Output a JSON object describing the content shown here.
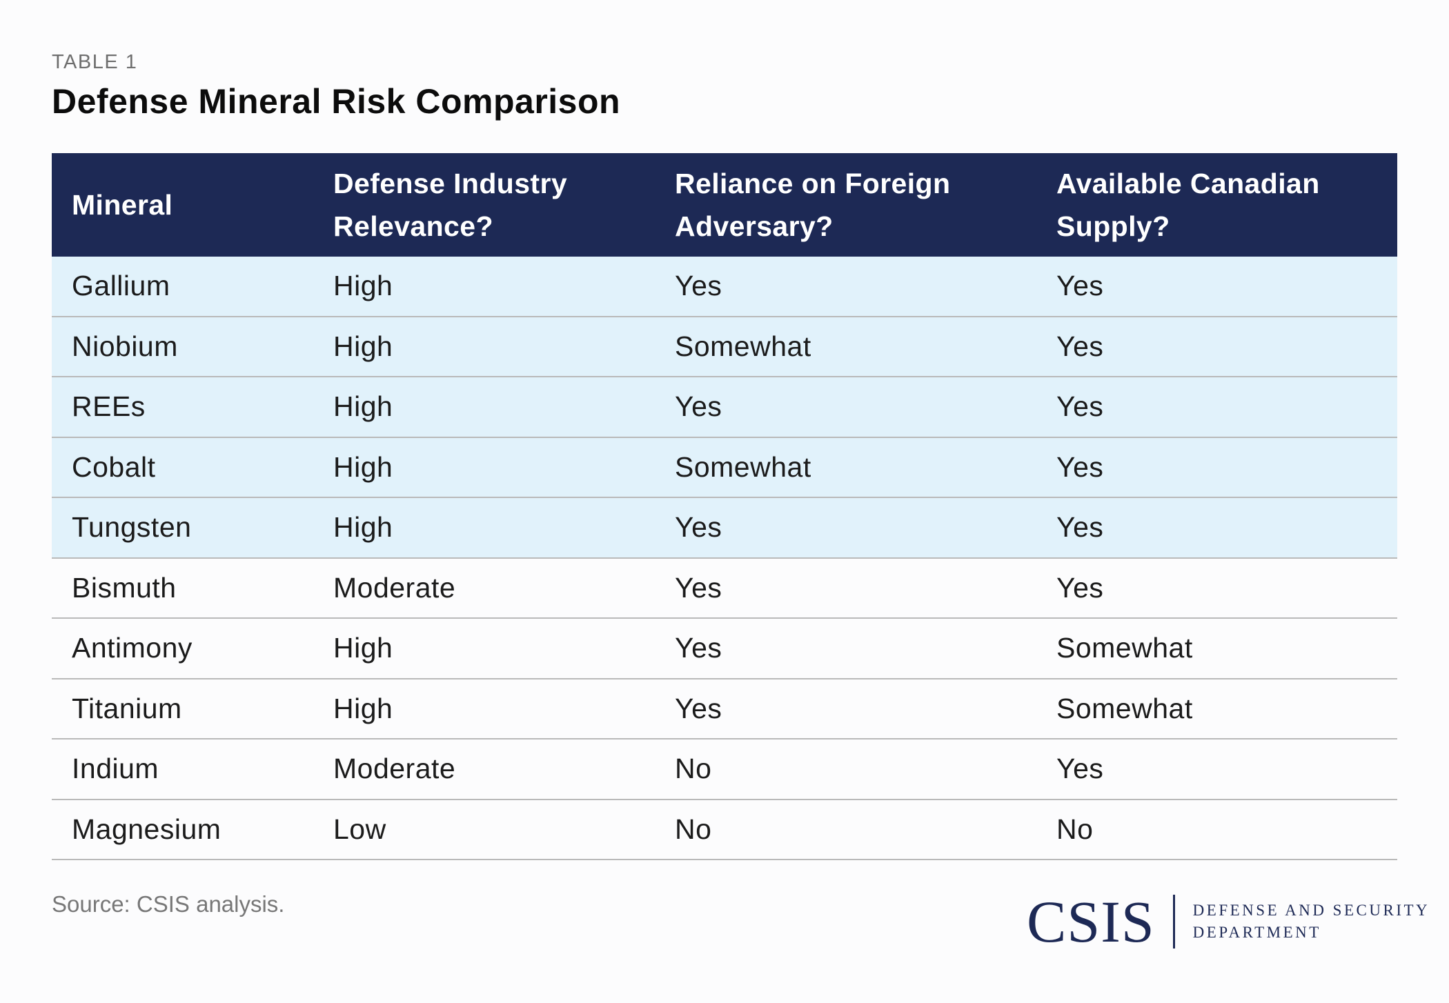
{
  "header": {
    "eyebrow": "TABLE 1",
    "title": "Defense Mineral Risk Comparison"
  },
  "table": {
    "columns": [
      "Mineral",
      "Defense Industry Relevance?",
      "Reliance on Foreign Adversary?",
      "Available Canadian Supply?"
    ],
    "rows": [
      [
        "Gallium",
        "High",
        "Yes",
        "Yes"
      ],
      [
        "Niobium",
        "High",
        "Somewhat",
        "Yes"
      ],
      [
        "REEs",
        "High",
        "Yes",
        "Yes"
      ],
      [
        "Cobalt",
        "High",
        "Somewhat",
        "Yes"
      ],
      [
        "Tungsten",
        "High",
        "Yes",
        "Yes"
      ],
      [
        "Bismuth",
        "Moderate",
        "Yes",
        "Yes"
      ],
      [
        "Antimony",
        "High",
        "Yes",
        "Somewhat"
      ],
      [
        "Titanium",
        "High",
        "Yes",
        "Somewhat"
      ],
      [
        "Indium",
        "Moderate",
        "No",
        "Yes"
      ],
      [
        "Magnesium",
        "Low",
        "No",
        "No"
      ]
    ],
    "highlighted_rows": 5
  },
  "footer": {
    "source": "Source: CSIS analysis.",
    "logo_word": "CSIS",
    "logo_dept_line1": "DEFENSE AND SECURITY",
    "logo_dept_line2": "DEPARTMENT"
  },
  "colors": {
    "header_bg": "#1d2955",
    "highlight_row_bg": "#e1f2fb",
    "brand": "#1d2955"
  }
}
